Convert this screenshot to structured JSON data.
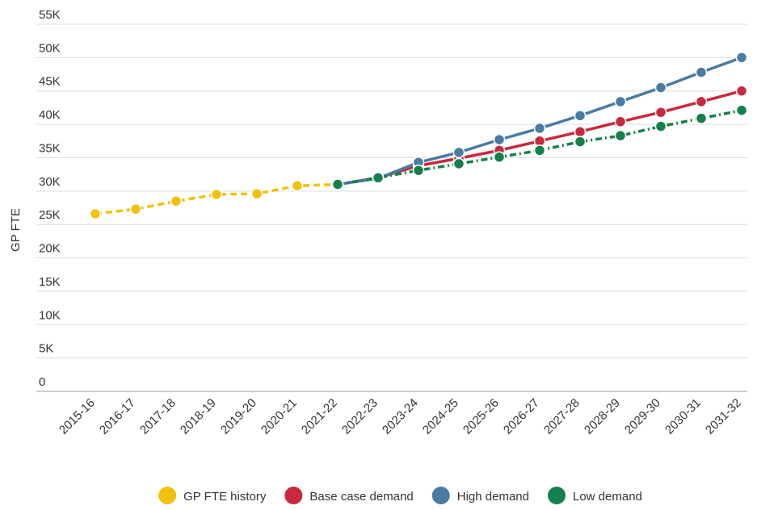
{
  "chart_data": {
    "type": "line",
    "y_label": "GP FTE",
    "categories": [
      "2015-16",
      "2016-17",
      "2017-18",
      "2018-19",
      "2019-20",
      "2020-21",
      "2021-22",
      "2022-23",
      "2023-24",
      "2024-25",
      "2025-26",
      "2026-27",
      "2027-28",
      "2028-29",
      "2029-30",
      "2030-31",
      "2031-32"
    ],
    "series": [
      {
        "name": "GP FTE history",
        "color": "#f0c20f",
        "dash": "dashed",
        "values": [
          26600,
          27300,
          28500,
          29500,
          29600,
          30800,
          31000,
          null,
          null,
          null,
          null,
          null,
          null,
          null,
          null,
          null,
          null
        ]
      },
      {
        "name": "Base case demand",
        "color": "#c9283e",
        "dash": "solid",
        "values": [
          null,
          null,
          null,
          null,
          null,
          null,
          31000,
          32000,
          33800,
          34900,
          36100,
          37500,
          38900,
          40400,
          41800,
          43400,
          45000
        ]
      },
      {
        "name": "High demand",
        "color": "#4a7ba3",
        "dash": "solid",
        "values": [
          null,
          null,
          null,
          null,
          null,
          null,
          31000,
          31900,
          34300,
          35800,
          37700,
          39400,
          41300,
          43400,
          45500,
          47800,
          50000
        ]
      },
      {
        "name": "Low demand",
        "color": "#15804b",
        "dash": "dashdot",
        "values": [
          null,
          null,
          null,
          null,
          null,
          null,
          31000,
          32000,
          33100,
          34100,
          35100,
          36100,
          37400,
          38300,
          39700,
          40900,
          42100
        ]
      }
    ],
    "ylim": [
      0,
      55000
    ],
    "yticks": [
      {
        "value": 0,
        "label": "0"
      },
      {
        "value": 5000,
        "label": "5K"
      },
      {
        "value": 10000,
        "label": "10K"
      },
      {
        "value": 15000,
        "label": "15K"
      },
      {
        "value": 20000,
        "label": "20K"
      },
      {
        "value": 25000,
        "label": "25K"
      },
      {
        "value": 30000,
        "label": "30K"
      },
      {
        "value": 35000,
        "label": "35K"
      },
      {
        "value": 40000,
        "label": "40K"
      },
      {
        "value": 45000,
        "label": "45K"
      },
      {
        "value": 50000,
        "label": "50K"
      },
      {
        "value": 55000,
        "label": "55K"
      }
    ],
    "grid": true,
    "legend": "bottom"
  }
}
